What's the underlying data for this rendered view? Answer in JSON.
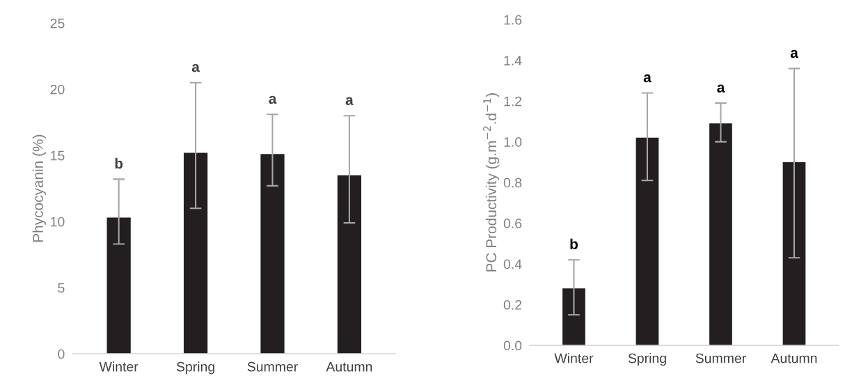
{
  "chart_data": [
    {
      "type": "bar",
      "ylabel": "Phycocyanin (%)",
      "categories": [
        "Winter",
        "Spring",
        "Summer",
        "Autumn"
      ],
      "values": [
        10.3,
        15.2,
        15.1,
        13.5
      ],
      "color": "#231f20",
      "errors": [
        [
          8.3,
          13.2
        ],
        [
          11.0,
          20.5
        ],
        [
          12.7,
          18.1
        ],
        [
          9.9,
          18.0
        ]
      ],
      "ylim": [
        0,
        25
      ],
      "yticks": [
        0,
        5,
        10,
        15,
        20,
        25
      ],
      "grid": false,
      "legend": false,
      "annotations": [
        "b",
        "a",
        "a",
        "a"
      ]
    },
    {
      "type": "bar",
      "ylabel": "PC Productivity (g.m$^{−2}$.d$^{−1}$)",
      "categories": [
        "Winter",
        "Spring",
        "Summer",
        "Autumn"
      ],
      "values": [
        0.28,
        1.02,
        1.09,
        0.9
      ],
      "color": "#231f20",
      "errors": [
        [
          0.15,
          0.42
        ],
        [
          0.81,
          1.24
        ],
        [
          1.0,
          1.19
        ],
        [
          0.43,
          1.36
        ]
      ],
      "ylim": [
        0,
        1.6
      ],
      "yticks": [
        {
          "value": 0,
          "label": "0.0"
        },
        0.2,
        0.4,
        0.6,
        0.8,
        {
          "value": 1.0,
          "label": "1.0"
        },
        1.2,
        1.4,
        1.6
      ],
      "grid": false,
      "legend": false,
      "annotations": [
        "b",
        "a",
        "a",
        "a"
      ]
    }
  ]
}
